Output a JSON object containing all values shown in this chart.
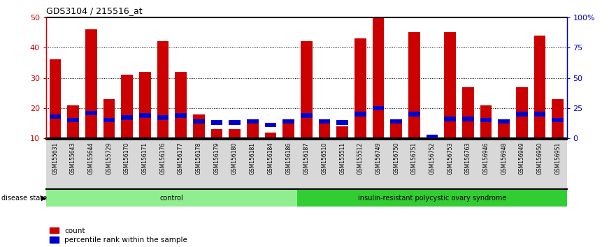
{
  "title": "GDS3104 / 215516_at",
  "samples": [
    "GSM155631",
    "GSM155643",
    "GSM155644",
    "GSM155729",
    "GSM156170",
    "GSM156171",
    "GSM156176",
    "GSM156177",
    "GSM156178",
    "GSM156179",
    "GSM156180",
    "GSM156181",
    "GSM156184",
    "GSM156186",
    "GSM156187",
    "GSM156510",
    "GSM155511",
    "GSM155512",
    "GSM156749",
    "GSM156750",
    "GSM156751",
    "GSM156752",
    "GSM156753",
    "GSM156763",
    "GSM156946",
    "GSM156948",
    "GSM156949",
    "GSM156950",
    "GSM156951"
  ],
  "counts": [
    36,
    21,
    46,
    23,
    31,
    32,
    42,
    32,
    18,
    13,
    13,
    15,
    12,
    16,
    42,
    15,
    14,
    43,
    50,
    16,
    45,
    11,
    45,
    27,
    21,
    16,
    27,
    44,
    23
  ],
  "percentile_ranks": [
    18,
    15,
    21,
    15,
    17,
    19,
    17,
    19,
    14,
    13,
    13,
    14,
    11,
    14,
    19,
    14,
    13,
    20,
    25,
    14,
    20,
    1,
    16,
    16,
    15,
    14,
    20,
    20,
    15
  ],
  "group_labels": [
    "control",
    "insulin-resistant polycystic ovary syndrome"
  ],
  "group_starts": [
    0,
    14
  ],
  "group_ends": [
    13,
    28
  ],
  "n_control": 14,
  "n_disease": 15,
  "ylim_left": [
    10,
    50
  ],
  "ylim_right": [
    0,
    100
  ],
  "yticks_left": [
    10,
    20,
    30,
    40,
    50
  ],
  "yticks_right": [
    0,
    25,
    50,
    75,
    100
  ],
  "bar_color": "#cc0000",
  "percentile_color": "#0000cc",
  "control_color": "#90ee90",
  "disease_color": "#32cd32",
  "bar_width": 0.65,
  "legend_items": [
    "count",
    "percentile rank within the sample"
  ],
  "percentile_bar_height": 1.5,
  "label_bg_color": "#d8d8d8"
}
